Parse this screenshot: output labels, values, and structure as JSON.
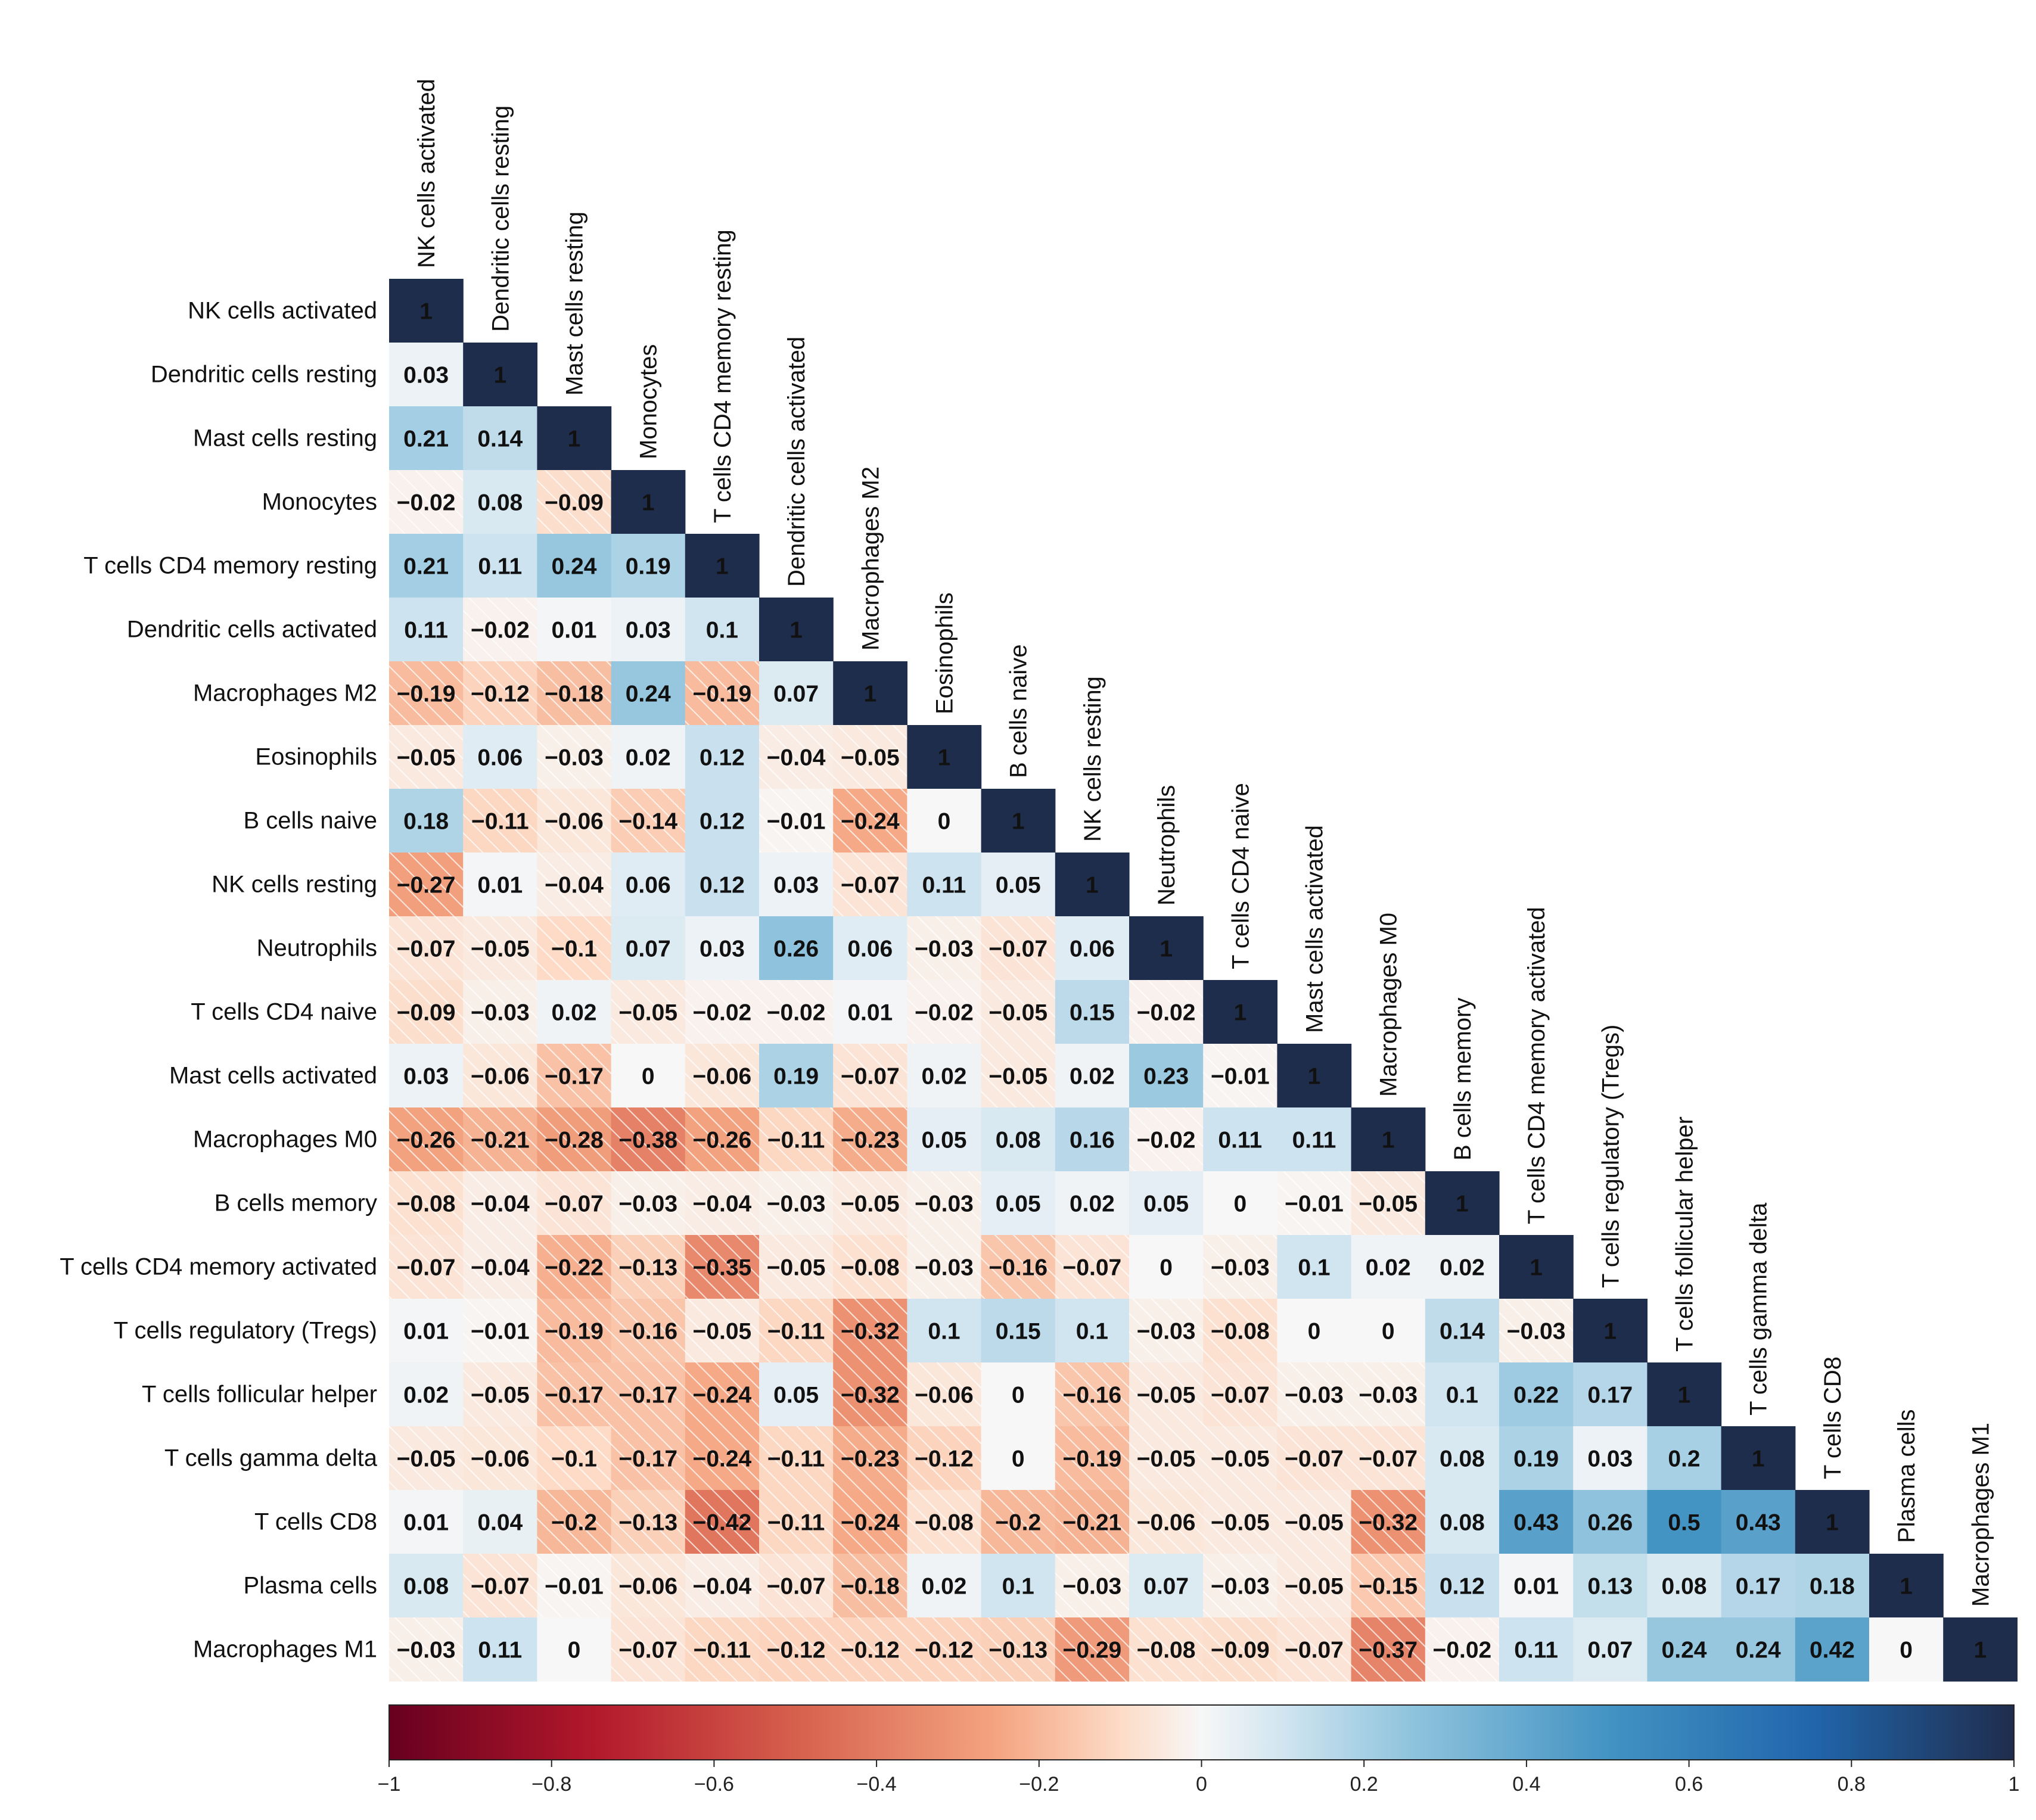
{
  "chart_data": {
    "type": "heatmap",
    "title": "",
    "subtitle": "",
    "matrix_style": "lower-triangle correlation matrix",
    "labels": [
      "NK cells activated",
      "Dendritic cells resting",
      "Mast cells resting",
      "Monocytes",
      "T cells CD4 memory resting",
      "Dendritic cells activated",
      "Macrophages M2",
      "Eosinophils",
      "B cells naive",
      "NK cells resting",
      "Neutrophils",
      "T cells CD4 naive",
      "Mast cells activated",
      "Macrophages M0",
      "B cells memory",
      "T cells CD4 memory activated",
      "T cells regulatory (Tregs)",
      "T cells follicular helper",
      "T cells gamma delta",
      "T cells CD8",
      "Plasma cells",
      "Macrophages M1"
    ],
    "values": [
      [
        1
      ],
      [
        0.03,
        1
      ],
      [
        0.21,
        0.14,
        1
      ],
      [
        -0.02,
        0.08,
        -0.09,
        1
      ],
      [
        0.21,
        0.11,
        0.24,
        0.19,
        1
      ],
      [
        0.11,
        -0.02,
        0.01,
        0.03,
        0.1,
        1
      ],
      [
        -0.19,
        -0.12,
        -0.18,
        0.24,
        -0.19,
        0.07,
        1
      ],
      [
        -0.05,
        0.06,
        -0.03,
        0.02,
        0.12,
        -0.04,
        -0.05,
        1
      ],
      [
        0.18,
        -0.11,
        -0.06,
        -0.14,
        0.12,
        -0.01,
        -0.24,
        0,
        1
      ],
      [
        -0.27,
        0.01,
        -0.04,
        0.06,
        0.12,
        0.03,
        -0.07,
        0.11,
        0.05,
        1
      ],
      [
        -0.07,
        -0.05,
        -0.1,
        0.07,
        0.03,
        0.26,
        0.06,
        -0.03,
        -0.07,
        0.06,
        1
      ],
      [
        -0.09,
        -0.03,
        0.02,
        -0.05,
        -0.02,
        -0.02,
        0.01,
        -0.02,
        -0.05,
        0.15,
        -0.02,
        1
      ],
      [
        0.03,
        -0.06,
        -0.17,
        0,
        -0.06,
        0.19,
        -0.07,
        0.02,
        -0.05,
        0.02,
        0.23,
        -0.01,
        1
      ],
      [
        -0.26,
        -0.21,
        -0.28,
        -0.38,
        -0.26,
        -0.11,
        -0.23,
        0.05,
        0.08,
        0.16,
        -0.02,
        0.11,
        0.11,
        1
      ],
      [
        -0.08,
        -0.04,
        -0.07,
        -0.03,
        -0.04,
        -0.03,
        -0.05,
        -0.03,
        0.05,
        0.02,
        0.05,
        0,
        -0.01,
        -0.05,
        1
      ],
      [
        -0.07,
        -0.04,
        -0.22,
        -0.13,
        -0.35,
        -0.05,
        -0.08,
        -0.03,
        -0.16,
        -0.07,
        0,
        -0.03,
        0.1,
        0.02,
        0.02,
        1
      ],
      [
        0.01,
        -0.01,
        -0.19,
        -0.16,
        -0.05,
        -0.11,
        -0.32,
        0.1,
        0.15,
        0.1,
        -0.03,
        -0.08,
        0,
        0,
        0.14,
        -0.03,
        1
      ],
      [
        0.02,
        -0.05,
        -0.17,
        -0.17,
        -0.24,
        0.05,
        -0.32,
        -0.06,
        0,
        -0.16,
        -0.05,
        -0.07,
        -0.03,
        -0.03,
        0.1,
        0.22,
        0.17,
        1
      ],
      [
        -0.05,
        -0.06,
        -0.1,
        -0.17,
        -0.24,
        -0.11,
        -0.23,
        -0.12,
        0,
        -0.19,
        -0.05,
        -0.05,
        -0.07,
        -0.07,
        0.08,
        0.19,
        0.03,
        0.2,
        1
      ],
      [
        0.01,
        0.04,
        -0.2,
        -0.13,
        -0.42,
        -0.11,
        -0.24,
        -0.08,
        -0.2,
        -0.21,
        -0.06,
        -0.05,
        -0.05,
        -0.32,
        0.08,
        0.43,
        0.26,
        0.5,
        0.43,
        1
      ],
      [
        0.08,
        -0.07,
        -0.01,
        -0.06,
        -0.04,
        -0.07,
        -0.18,
        0.02,
        0.1,
        -0.03,
        0.07,
        -0.03,
        -0.05,
        -0.15,
        0.12,
        0.01,
        0.13,
        0.08,
        0.17,
        0.18,
        1
      ],
      [
        -0.03,
        0.11,
        0,
        -0.07,
        -0.11,
        -0.12,
        -0.12,
        -0.12,
        -0.13,
        -0.29,
        -0.08,
        -0.09,
        -0.07,
        -0.37,
        -0.02,
        0.11,
        0.07,
        0.24,
        0.24,
        0.42,
        0,
        1
      ]
    ],
    "colorbar": {
      "min": -1,
      "max": 1,
      "ticks": [
        -1,
        -0.8,
        -0.6,
        -0.4,
        -0.2,
        0,
        0.2,
        0.4,
        0.6,
        0.8,
        1
      ],
      "tick_labels": [
        "−1",
        "−0.8",
        "−0.6",
        "−0.4",
        "−0.2",
        "0",
        "0.2",
        "0.4",
        "0.6",
        "0.8",
        "1"
      ],
      "placement": "bottom"
    },
    "colormap": {
      "name": "RdBu",
      "stops": [
        {
          "value": -1,
          "color": "#67001f"
        },
        {
          "value": -0.75,
          "color": "#b2182b"
        },
        {
          "value": -0.5,
          "color": "#d6604d"
        },
        {
          "value": -0.25,
          "color": "#f4a582"
        },
        {
          "value": -0.1,
          "color": "#fddbc7"
        },
        {
          "value": 0,
          "color": "#f7f7f7"
        },
        {
          "value": 0.1,
          "color": "#d1e5f0"
        },
        {
          "value": 0.25,
          "color": "#92c5de"
        },
        {
          "value": 0.5,
          "color": "#4393c3"
        },
        {
          "value": 0.75,
          "color": "#2166ac"
        },
        {
          "value": 1,
          "color": "#1f2d4d"
        }
      ]
    },
    "hatch_negative": true
  }
}
